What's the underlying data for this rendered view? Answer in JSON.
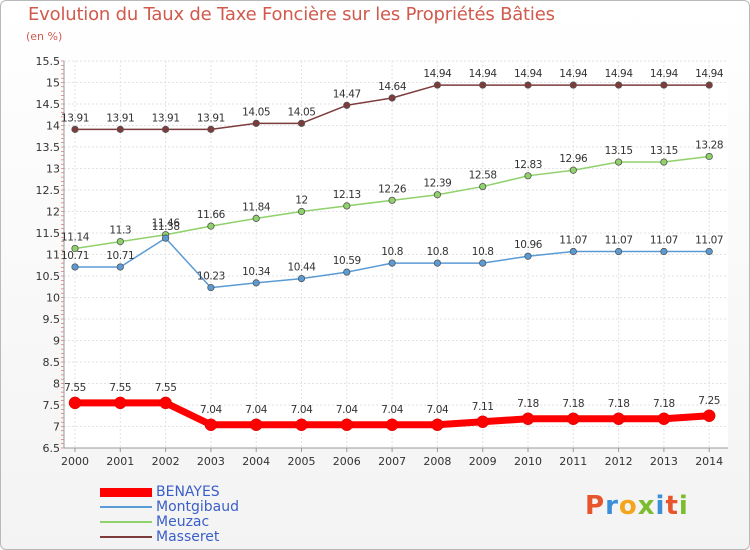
{
  "header": {
    "title": "Evolution du Taux de Taxe Foncière sur les Propriétés Bâties",
    "unit": "(en %)"
  },
  "logo": {
    "text": "Proxiti",
    "colors": [
      "#e8542b",
      "#3b8fd6",
      "#f2a51d",
      "#7bbd2f",
      "#3b8fd6",
      "#e8542b",
      "#7bbd2f"
    ]
  },
  "chart_data": {
    "type": "line",
    "title": "Evolution du Taux de Taxe Foncière sur les Propriétés Bâties",
    "ylabel": "(en %)",
    "xlabel": "",
    "x": [
      "2000",
      "2001",
      "2002",
      "2003",
      "2004",
      "2005",
      "2006",
      "2007",
      "2008",
      "2009",
      "2010",
      "2011",
      "2012",
      "2013",
      "2014"
    ],
    "ylim": [
      6.5,
      15.5
    ],
    "yticks": [
      "6.5",
      "7",
      "7.5",
      "8",
      "8.5",
      "9",
      "9.5",
      "10",
      "10.5",
      "11",
      "11.5",
      "12",
      "12.5",
      "13",
      "13.5",
      "14",
      "14.5",
      "15",
      "15.5"
    ],
    "grid": true,
    "legend_position": "bottom-left",
    "series": [
      {
        "name": "BENAYES",
        "color": "#ff0000",
        "values": [
          7.55,
          7.55,
          7.55,
          7.04,
          7.04,
          7.04,
          7.04,
          7.04,
          7.04,
          7.11,
          7.18,
          7.18,
          7.18,
          7.18,
          7.25
        ],
        "labels": [
          "7.55",
          "7.55",
          "7.55",
          "7.04",
          "7.04",
          "7.04",
          "7.04",
          "7.04",
          "7.04",
          "7.11",
          "7.18",
          "7.18",
          "7.18",
          "7.18",
          "7.25"
        ]
      },
      {
        "name": "Montgibaud",
        "color": "#5b9bd5",
        "values": [
          10.71,
          10.71,
          11.38,
          10.23,
          10.34,
          10.44,
          10.59,
          10.8,
          10.8,
          10.8,
          10.96,
          11.07,
          11.07,
          11.07,
          11.07
        ],
        "labels": [
          "10.71",
          "10.71",
          "11.38",
          "10.23",
          "10.34",
          "10.44",
          "10.59",
          "10.8",
          "10.8",
          "10.8",
          "10.96",
          "11.07",
          "11.07",
          "11.07",
          "11.07"
        ]
      },
      {
        "name": "Meuzac",
        "color": "#8fd16a",
        "values": [
          11.14,
          11.3,
          11.46,
          11.66,
          11.84,
          12,
          12.13,
          12.26,
          12.39,
          12.58,
          12.83,
          12.96,
          13.15,
          13.15,
          13.28
        ],
        "labels": [
          "11.14",
          "11.3",
          "11.46",
          "11.66",
          "11.84",
          "12",
          "12.13",
          "12.26",
          "12.39",
          "12.58",
          "12.83",
          "12.96",
          "13.15",
          "13.15",
          "13.28"
        ]
      },
      {
        "name": "Masseret",
        "color": "#7d3b3b",
        "values": [
          13.91,
          13.91,
          13.91,
          13.91,
          14.05,
          14.05,
          14.47,
          14.64,
          14.94,
          14.94,
          14.94,
          14.94,
          14.94,
          14.94,
          14.94
        ],
        "labels": [
          "13.91",
          "13.91",
          "13.91",
          "13.91",
          "14.05",
          "14.05",
          "14.47",
          "14.64",
          "14.94",
          "14.94",
          "14.94",
          "14.94",
          "14.94",
          "14.94",
          "14.94"
        ]
      }
    ]
  }
}
